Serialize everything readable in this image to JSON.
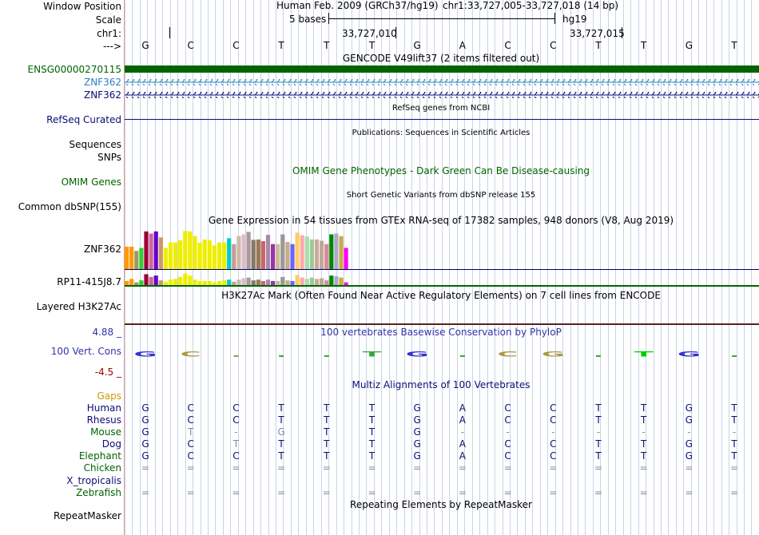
{
  "labels": {
    "window_position": "Window Position",
    "scale": "Scale",
    "chr": "chr1:",
    "arrow": "--->",
    "gencode_gene": "ENSG00000270115",
    "znf362_a": "ZNF362",
    "znf362_b": "ZNF362",
    "refseq": "RefSeq Curated",
    "sequences": "Sequences",
    "snps": "SNPs",
    "omim": "OMIM Genes",
    "common_dbsnp": "Common dbSNP(155)",
    "gtex_znf362": "ZNF362",
    "gtex_rp11": "RP11-415J8.7",
    "h3k27ac": "Layered H3K27Ac",
    "cons_max": "4.88 _",
    "cons": "100 Vert. Cons",
    "cons_min": "-4.5 _",
    "gaps": "Gaps",
    "species": [
      "Human",
      "Rhesus",
      "Mouse",
      "Dog",
      "Elephant",
      "Chicken",
      "X_tropicalis",
      "Zebrafish"
    ],
    "repeatmasker": "RepeatMasker"
  },
  "header": {
    "assembly": "Human Feb. 2009 (GRCh37/hg19)",
    "position": "chr1:33,727,005-33,727,018 (14 bp)",
    "scale_text": "5 bases",
    "scale_db": "hg19",
    "coord1": "33,727,010",
    "coord2": "33,727,015"
  },
  "sequence": [
    "G",
    "C",
    "C",
    "T",
    "T",
    "T",
    "G",
    "A",
    "C",
    "C",
    "T",
    "T",
    "G",
    "T"
  ],
  "tracks": {
    "gencode_title": "GENCODE V49lift37 (2 items filtered out)",
    "refseq_title": "RefSeq genes from NCBI",
    "pubs_title": "Publications: Sequences in Scientific Articles",
    "omim_title": "OMIM Gene Phenotypes - Dark Green Can Be Disease-causing",
    "snp_title": "Short Genetic Variants from dbSNP release 155",
    "gtex_title": "Gene Expression in 54 tissues from GTEx RNA-seq of 17382 samples, 948 donors (V8, Aug 2019)",
    "h3k_title": "H3K27Ac Mark (Often Found Near Active Regulatory Elements) on 7 cell lines from ENCODE",
    "phylop_title": "100 vertebrates Basewise Conservation by PhyloP",
    "multiz_title": "Multiz Alignments of 100 Vertebrates",
    "rmsk_title": "Repeating Elements by RepeatMasker"
  },
  "alignment": {
    "Human": [
      "G",
      "C",
      "C",
      "T",
      "T",
      "T",
      "G",
      "A",
      "C",
      "C",
      "T",
      "T",
      "G",
      "T"
    ],
    "Rhesus": [
      "G",
      "C",
      "C",
      "T",
      "T",
      "T",
      "G",
      "A",
      "C",
      "C",
      "T",
      "T",
      "G",
      "T"
    ],
    "Mouse": [
      "G",
      "T",
      "-",
      "G",
      "T",
      "T",
      "G",
      "-",
      "-",
      "-",
      "-",
      "-",
      "-",
      "-"
    ],
    "Dog": [
      "G",
      "C",
      "T",
      "T",
      "T",
      "T",
      "G",
      "A",
      "C",
      "C",
      "T",
      "T",
      "G",
      "T"
    ],
    "Elephant": [
      "G",
      "C",
      "C",
      "T",
      "T",
      "T",
      "G",
      "A",
      "C",
      "C",
      "T",
      "T",
      "G",
      "T"
    ],
    "Chicken": [
      "=",
      "=",
      "=",
      "=",
      "=",
      "=",
      "=",
      "=",
      "=",
      "=",
      "=",
      "=",
      "=",
      "="
    ],
    "X_tropicalis": [
      "",
      "",
      "",
      "",
      "",
      "",
      "",
      "",
      "",
      "",
      "",
      "",
      "",
      ""
    ],
    "Zebrafish": [
      "=",
      "=",
      "=",
      "=",
      "=",
      "=",
      "=",
      "=",
      "=",
      "=",
      "=",
      "=",
      "=",
      "="
    ]
  },
  "gtex": {
    "colors": [
      "#ff9900",
      "#ff9900",
      "#999966",
      "#33cc33",
      "#990033",
      "#cc6699",
      "#6600cc",
      "#cc9966",
      "#eeee00",
      "#eeee00",
      "#eeee00",
      "#eeee00",
      "#eeee00",
      "#eeee00",
      "#eeee00",
      "#eeee00",
      "#eeee00",
      "#eeee00",
      "#eeee00",
      "#eeee00",
      "#eeee00",
      "#00cccc",
      "#cc9999",
      "#ccbbaa",
      "#ddbbcc",
      "#aa9999",
      "#887766",
      "#997755",
      "#cc6666",
      "#aa88aa",
      "#9933aa",
      "#ccbb99",
      "#999999",
      "#ccaa88",
      "#6666ff",
      "#ffcc66",
      "#ffaaaa",
      "#aaddaa",
      "#99cc99",
      "#ccaa99",
      "#bbaa99",
      "#dd8899",
      "#008800",
      "#aaaacc",
      "#ccaa44",
      "#ff00ff"
    ],
    "znf362_values": [
      0.53,
      0.53,
      0.43,
      0.5,
      0.89,
      0.84,
      0.89,
      0.75,
      0.5,
      0.63,
      0.63,
      0.68,
      0.9,
      0.89,
      0.78,
      0.62,
      0.7,
      0.68,
      0.56,
      0.63,
      0.63,
      0.73,
      0.59,
      0.78,
      0.82,
      0.88,
      0.69,
      0.7,
      0.66,
      0.81,
      0.59,
      0.59,
      0.82,
      0.64,
      0.59,
      0.86,
      0.8,
      0.77,
      0.7,
      0.7,
      0.67,
      0.59,
      0.82,
      0.84,
      0.78,
      0.5
    ],
    "rp11_values": [
      0.3,
      0.45,
      0.2,
      0.35,
      0.8,
      0.6,
      0.7,
      0.35,
      0.25,
      0.4,
      0.45,
      0.6,
      0.85,
      0.7,
      0.4,
      0.3,
      0.3,
      0.3,
      0.2,
      0.3,
      0.35,
      0.4,
      0.25,
      0.4,
      0.5,
      0.55,
      0.35,
      0.4,
      0.3,
      0.4,
      0.3,
      0.3,
      0.6,
      0.35,
      0.3,
      0.75,
      0.55,
      0.45,
      0.55,
      0.45,
      0.5,
      0.35,
      0.7,
      0.65,
      0.55,
      0.2
    ]
  },
  "phylop": {
    "logo_letters": [
      "G",
      "C",
      "",
      "",
      "",
      "T",
      "G",
      "",
      "C",
      "G",
      "",
      "T",
      "G",
      ""
    ],
    "logo_colors": [
      "#3333cc",
      "#aa9944",
      "#aa9944",
      "#33aa33",
      "#33aa33",
      "#33aa33",
      "#3333cc",
      "#33aa33",
      "#aa9944",
      "#aa9944",
      "#33aa33",
      "#00cc00",
      "#3333cc",
      "#33aa33"
    ]
  },
  "colors": {
    "gencode_bar": "#006400",
    "znf362_a": "#2a7fbf",
    "znf362_b": "#0c0c78",
    "refseq": "#0c0c78",
    "omim": "#006400",
    "gtex_line": "#000066",
    "h3k_line": "#552222",
    "phylop": "#3333aa",
    "cons_max": "#3333aa",
    "cons_min": "#990000",
    "gaps": "#cc9900",
    "species": "#0c0c78",
    "species_green": "#006400",
    "mouse_mismatch": "#8888aa"
  }
}
